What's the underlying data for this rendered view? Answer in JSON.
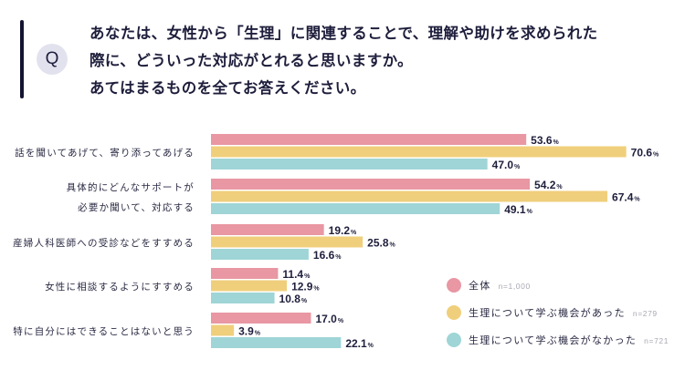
{
  "question": {
    "badge": "Q",
    "lines": [
      "あなたは、女性から「生理」に関連することで、理解や助けを求められた",
      "際に、どういった対応がとれると思いますか。",
      "あてはまるものを全てお答えください。"
    ]
  },
  "chart_data": {
    "type": "bar",
    "orientation": "horizontal",
    "title": "あなたは、女性から「生理」に関連することで、理解や助けを求められた際に、どういった対応がとれると思いますか。あてはまるものを全てお答えください。",
    "unit": "%",
    "xlabel": "",
    "ylabel": "",
    "xlim": [
      0,
      75
    ],
    "grid": false,
    "legend_position": "bottom-right",
    "categories": [
      [
        "話を聞いてあげて、寄り添ってあげる"
      ],
      [
        "具体的にどんなサポートが",
        "必要か聞いて、対応する"
      ],
      [
        "産婦人科医師への受診などをすすめる"
      ],
      [
        "女性に相談するようにすすめる"
      ],
      [
        "特に自分にはできることはないと思う"
      ]
    ],
    "series": [
      {
        "name": "全体",
        "n": "n=1,000",
        "color": "#e897a3",
        "values": [
          53.6,
          54.2,
          19.2,
          11.4,
          17.0
        ]
      },
      {
        "name": "生理について学ぶ機会があった",
        "n": "n=279",
        "color": "#f0cf7c",
        "values": [
          70.6,
          67.4,
          25.8,
          12.9,
          3.9
        ]
      },
      {
        "name": "生理について学ぶ機会がなかった",
        "n": "n=721",
        "color": "#9fd5d6",
        "values": [
          47.0,
          49.1,
          16.6,
          10.8,
          22.1
        ]
      }
    ]
  }
}
